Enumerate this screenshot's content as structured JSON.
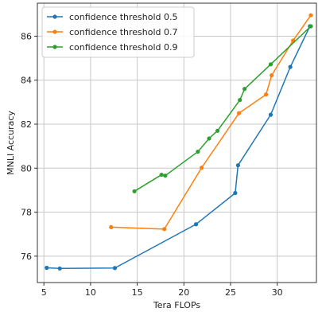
{
  "chart_data": {
    "type": "line",
    "xlabel": "Tera FLOPs",
    "ylabel": "MNLI Accuracy",
    "xlim": [
      4.3,
      34.2
    ],
    "ylim": [
      74.8,
      87.5
    ],
    "xticks": [
      5,
      10,
      15,
      20,
      25,
      30
    ],
    "yticks": [
      76,
      78,
      80,
      82,
      84,
      86
    ],
    "grid": true,
    "legend_position": "top-left",
    "series": [
      {
        "name": "confidence threshold 0.5",
        "color": "#1f77b4",
        "points": [
          [
            5.3,
            75.47
          ],
          [
            6.7,
            75.44
          ],
          [
            12.6,
            75.46
          ],
          [
            21.3,
            77.45
          ],
          [
            25.5,
            78.87
          ],
          [
            25.8,
            80.13
          ],
          [
            29.3,
            82.43
          ],
          [
            31.4,
            84.6
          ],
          [
            33.5,
            86.45
          ]
        ]
      },
      {
        "name": "confidence threshold 0.7",
        "color": "#ff7f0e",
        "points": [
          [
            12.2,
            77.32
          ],
          [
            17.9,
            77.23
          ],
          [
            21.9,
            80.02
          ],
          [
            25.9,
            82.5
          ],
          [
            28.8,
            83.35
          ],
          [
            29.4,
            84.22
          ],
          [
            31.7,
            85.8
          ],
          [
            33.6,
            86.95
          ]
        ]
      },
      {
        "name": "confidence threshold 0.9",
        "color": "#2ca02c",
        "points": [
          [
            14.7,
            78.95
          ],
          [
            17.6,
            79.7
          ],
          [
            18.0,
            79.66
          ],
          [
            21.5,
            80.75
          ],
          [
            22.7,
            81.35
          ],
          [
            23.6,
            81.7
          ],
          [
            26.0,
            83.1
          ],
          [
            26.5,
            83.6
          ],
          [
            29.3,
            84.72
          ],
          [
            33.6,
            86.45
          ]
        ]
      }
    ]
  }
}
